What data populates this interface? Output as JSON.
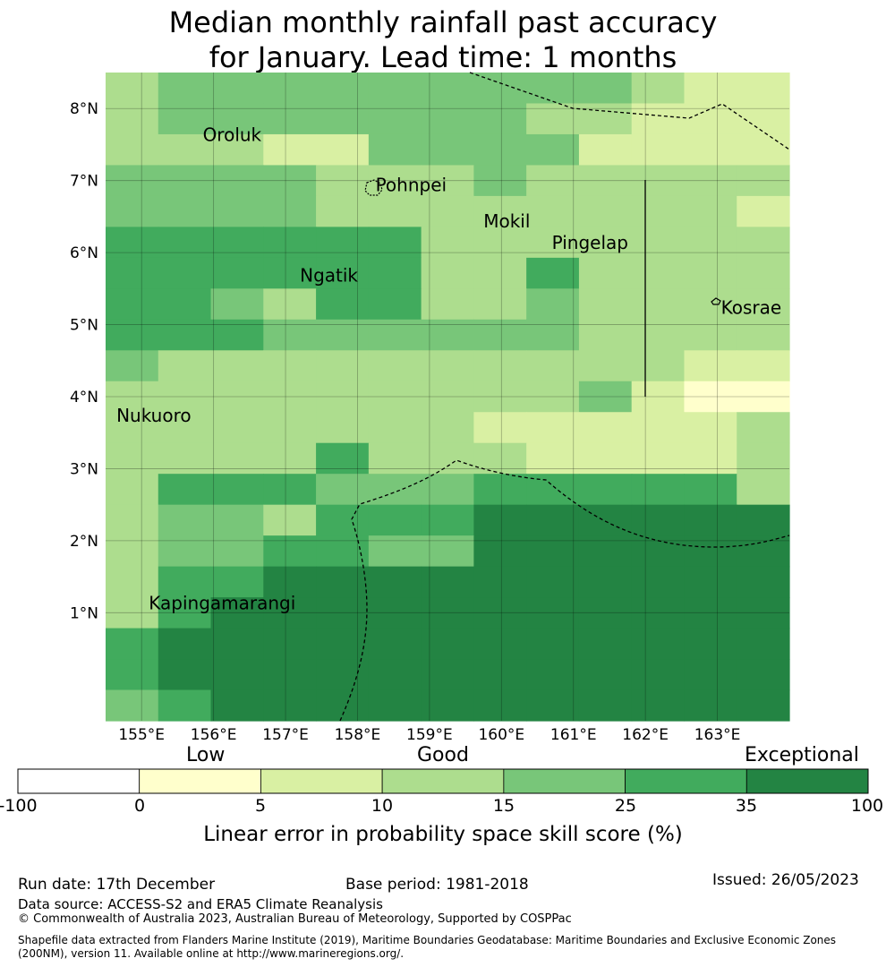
{
  "title": {
    "line1": "Median monthly rainfall past accuracy",
    "line2": "for January. Lead time: 1 months"
  },
  "map": {
    "lon_range": [
      154.5,
      164.0
    ],
    "lat_range": [
      -0.5,
      8.5
    ],
    "lon_ticks": [
      "155°E",
      "156°E",
      "157°E",
      "158°E",
      "159°E",
      "160°E",
      "161°E",
      "162°E",
      "163°E"
    ],
    "lat_ticks": [
      "1°N",
      "2°N",
      "3°N",
      "4°N",
      "5°N",
      "6°N",
      "7°N",
      "8°N"
    ],
    "places": [
      {
        "name": "Oroluk",
        "lon": 155.85,
        "lat": 7.55
      },
      {
        "name": "Pohnpei",
        "lon": 158.25,
        "lat": 6.85
      },
      {
        "name": "Mokil",
        "lon": 159.75,
        "lat": 6.35
      },
      {
        "name": "Pingelap",
        "lon": 160.7,
        "lat": 6.05
      },
      {
        "name": "Ngatik",
        "lon": 157.2,
        "lat": 5.6
      },
      {
        "name": "Kosrae",
        "lon": 163.05,
        "lat": 5.15
      },
      {
        "name": "Nukuoro",
        "lon": 154.65,
        "lat": 3.65
      },
      {
        "name": "Kapingamarangi",
        "lon": 155.1,
        "lat": 1.05
      }
    ]
  },
  "grid_rows_north_to_south": [
    "3444444444322",
    "3444444433222",
    "3332244442222",
    "4444333433333",
    "4444333333332",
    "5555553333333",
    "5555553353333",
    "5543553343333",
    "5554444443333",
    "4333333333322",
    "3333333334211",
    "3333333222223",
    "3333533322223",
    "3555444555553",
    "3443555666666",
    "3445544666666",
    "3556666666666",
    "3566666666666",
    "5666666666666",
    "5666666666666",
    "4566666666666"
  ],
  "colorbar": {
    "categories": [
      "Low",
      "Good",
      "Exceptional"
    ],
    "tick_labels": [
      "-100",
      "0",
      "5",
      "10",
      "15",
      "25",
      "35",
      "100"
    ],
    "colors": [
      "#ffffff",
      "#ffffcc",
      "#d9f0a3",
      "#addd8e",
      "#78c679",
      "#41ab5d",
      "#238443"
    ],
    "title": "Linear error in probability space skill score (%)"
  },
  "footer": {
    "run_date": "Run date: 17th December",
    "base_period": "Base period: 1981-2018",
    "issued": "Issued: 26/05/2023",
    "data_source": "Data source: ACCESS-S2 and ERA5 Climate Reanalysis",
    "copyright": "© Commonwealth of Australia 2023, Australian Bureau of Meteorology, Supported by COSPPac",
    "shapefile_line1": "Shapefile data extracted from Flanders Marine Institute (2019), Maritime Boundaries Geodatabase: Maritime Boundaries and Exclusive Economic Zones",
    "shapefile_line2": "(200NM), version 11. Available online at http://www.marineregions.org/."
  }
}
